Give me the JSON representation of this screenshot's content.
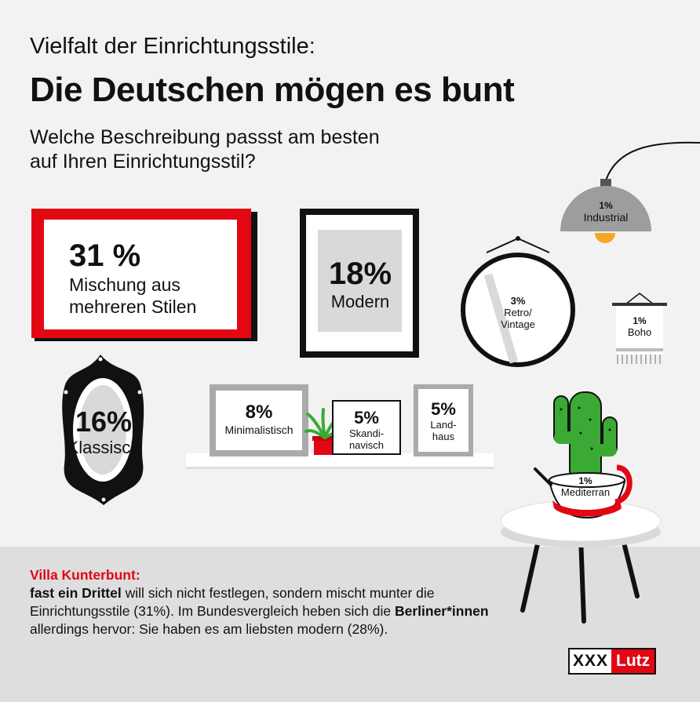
{
  "header": {
    "kicker": "Vielfalt der Einrichtungsstile:",
    "headline": "Die Deutschen mögen es bunt",
    "question_line1": "Welche Beschreibung passst am besten",
    "question_line2": "auf Ihren Einrichtungsstil?"
  },
  "chart_data": {
    "type": "pictorial",
    "categories": [
      "Mischung aus mehreren Stilen",
      "Modern",
      "Klassisch",
      "Minimalistisch",
      "Skandinavisch",
      "Landhaus",
      "Retro/Vintage",
      "Industrial",
      "Boho",
      "Mediterran"
    ],
    "values": [
      31,
      18,
      16,
      8,
      5,
      5,
      3,
      1,
      1,
      1
    ],
    "unit": "%",
    "items": [
      {
        "value": "31 %",
        "label1": "Mischung aus",
        "label2": "mehreren Stilen"
      },
      {
        "value": "18%",
        "label1": "Modern"
      },
      {
        "value": "16%",
        "label1": "Klassisch"
      },
      {
        "value": "8%",
        "label1": "Minimalistisch"
      },
      {
        "value": "5%",
        "label1": "Skandi-",
        "label2": "navisch"
      },
      {
        "value": "5%",
        "label1": "Land-",
        "label2": "haus"
      },
      {
        "value": "3%",
        "label1": "Retro/",
        "label2": "Vintage"
      },
      {
        "value": "1%",
        "label1": "Industrial"
      },
      {
        "value": "1%",
        "label1": "Boho"
      },
      {
        "value": "1%",
        "label1": "Mediterran"
      }
    ]
  },
  "summary": {
    "title": "Villa Kunterbunt:",
    "bold1": "fast ein Drittel",
    "text1": " will sich nicht festlegen, sondern mischt munter die Einrichtungsstile (31%). Im Bundesvergleich heben sich die ",
    "bold2": "Berliner*innen",
    "text2": " allerdings hervor: Sie haben es am liebsten modern (28%)."
  },
  "logo": {
    "part1": "XXX",
    "part2": "Lutz"
  },
  "colors": {
    "accent": "#e30613",
    "dark": "#111111",
    "light_grey": "#d9d9d9",
    "green": "#3aaa35"
  }
}
